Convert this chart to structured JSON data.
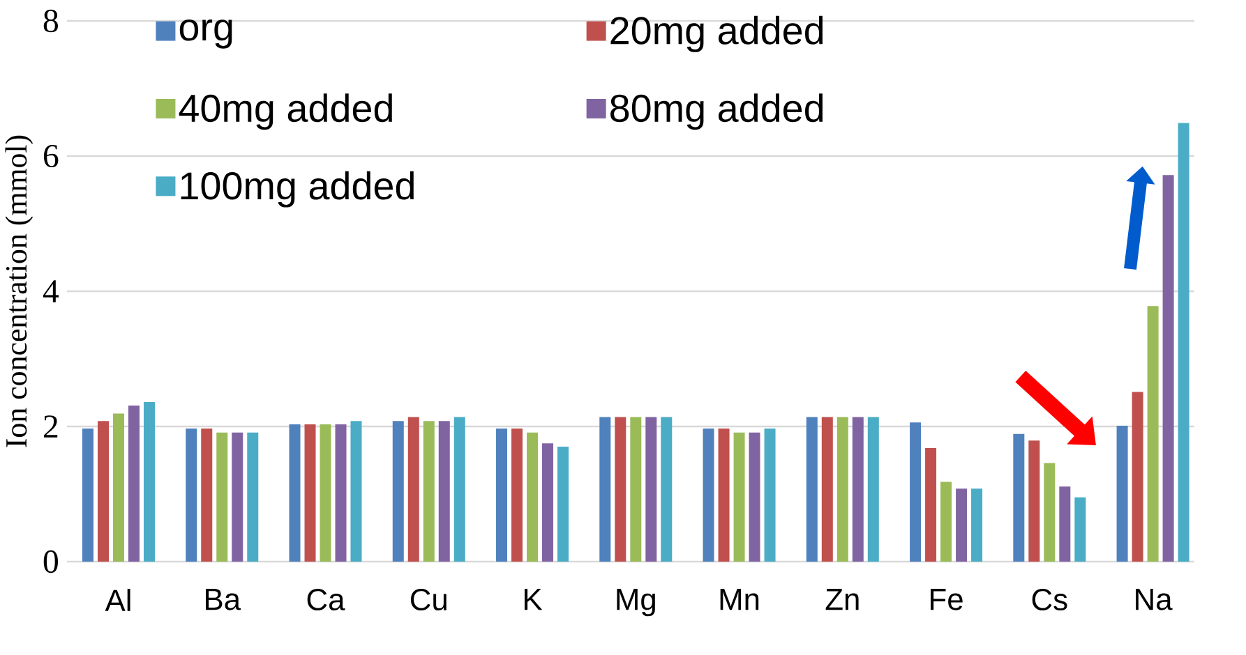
{
  "chart_data": {
    "type": "bar",
    "ylabel": "Ion concentration (mmol)",
    "categories": [
      "Al",
      "Ba",
      "Ca",
      "Cu",
      "K",
      "Mg",
      "Mn",
      "Zn",
      "Fe",
      "Cs",
      "Na"
    ],
    "series": [
      {
        "name": "org",
        "color": "#4f81bd",
        "values": [
          1.97,
          1.97,
          2.03,
          2.08,
          1.97,
          2.14,
          1.97,
          2.14,
          2.06,
          1.89,
          2.01
        ]
      },
      {
        "name": "20mg added",
        "color": "#c0504d",
        "values": [
          2.08,
          1.97,
          2.03,
          2.14,
          1.97,
          2.14,
          1.97,
          2.14,
          1.68,
          1.79,
          2.51
        ]
      },
      {
        "name": "40mg added",
        "color": "#9bbb59",
        "values": [
          2.19,
          1.91,
          2.03,
          2.08,
          1.91,
          2.14,
          1.91,
          2.14,
          1.18,
          1.46,
          3.78
        ]
      },
      {
        "name": "80mg added",
        "color": "#8064a2",
        "values": [
          2.31,
          1.91,
          2.03,
          2.08,
          1.75,
          2.14,
          1.91,
          2.14,
          1.08,
          1.11,
          5.72
        ]
      },
      {
        "name": "100mg added",
        "color": "#4bacc6",
        "values": [
          2.36,
          1.91,
          2.08,
          2.14,
          1.7,
          2.14,
          1.97,
          2.14,
          1.08,
          0.95,
          6.49
        ]
      }
    ],
    "ylim": [
      0,
      8
    ],
    "yticks": [
      0,
      2,
      4,
      6,
      8
    ],
    "grid": "y",
    "legend": "top left"
  }
}
